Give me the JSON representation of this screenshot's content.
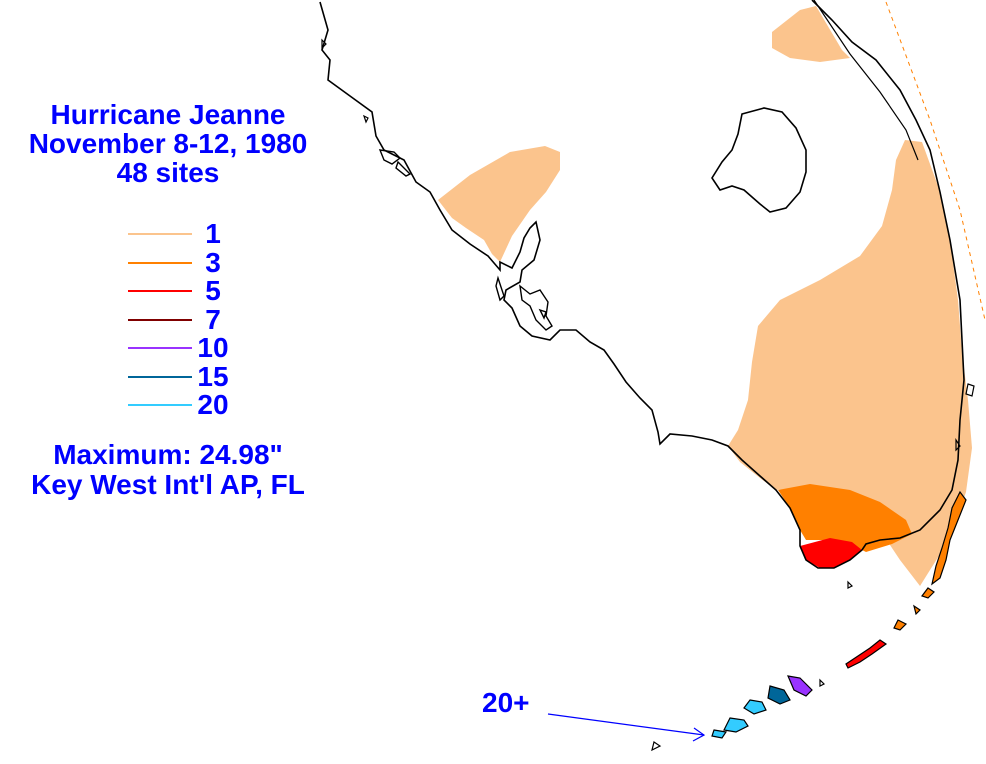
{
  "title": {
    "line1": "Hurricane Jeanne",
    "line2": "November 8-12, 1980",
    "line3": "48 sites"
  },
  "legend": {
    "items": [
      {
        "label": "1",
        "color": "#fbc48d"
      },
      {
        "label": "3",
        "color": "#ff8000"
      },
      {
        "label": "5",
        "color": "#ff0000"
      },
      {
        "label": "7",
        "color": "#800000"
      },
      {
        "label": "10",
        "color": "#9933ff"
      },
      {
        "label": "15",
        "color": "#006699"
      },
      {
        "label": "20",
        "color": "#33ccff"
      }
    ]
  },
  "maximum": {
    "label": "Maximum:  24.98\"",
    "location": "Key West Int'l AP, FL"
  },
  "pointer": {
    "label": "20+"
  },
  "colors": {
    "text": "#0000ff",
    "coastline": "#000000",
    "rain_1": "#fbc48d",
    "rain_3": "#ff8000",
    "rain_5": "#ff0000",
    "rain_20": "#33ccff"
  }
}
